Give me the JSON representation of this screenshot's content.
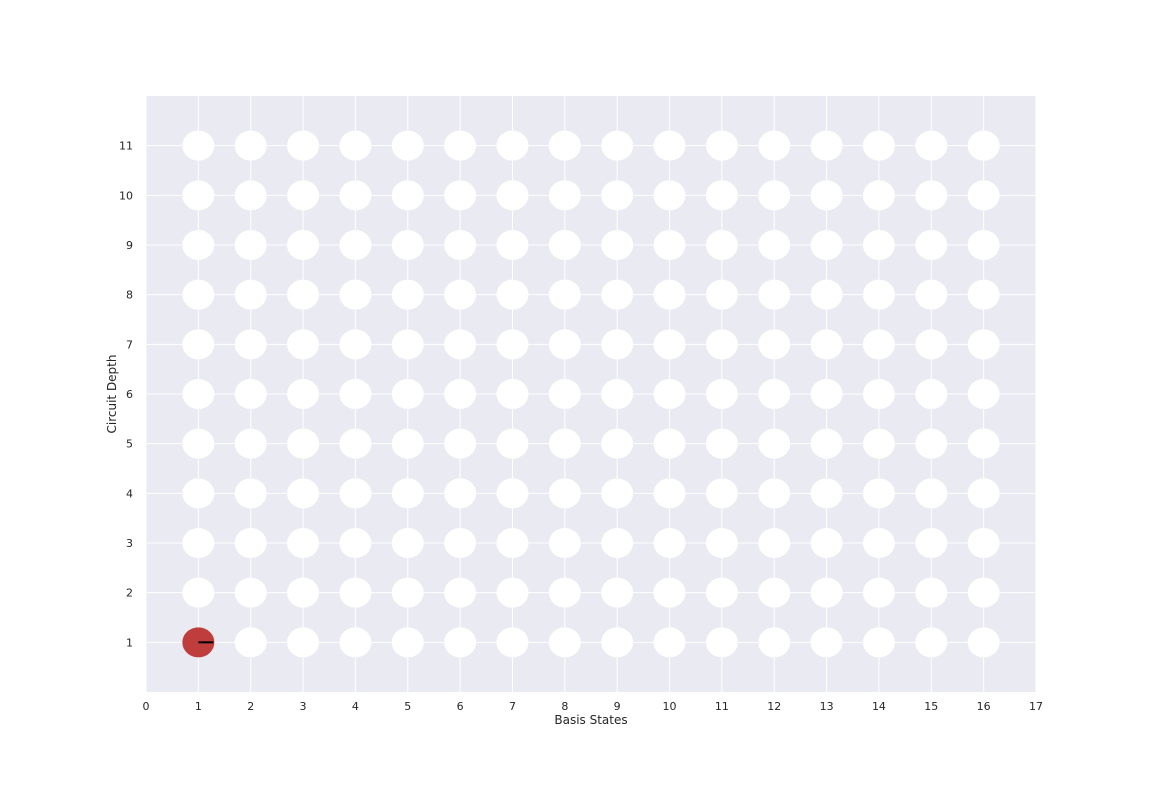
{
  "chart_data": {
    "type": "scatter",
    "xlabel": "Basis States",
    "ylabel": "Circuit Depth",
    "xlim": [
      0,
      17
    ],
    "ylim": [
      0,
      12
    ],
    "xticks": [
      "0",
      "1",
      "2",
      "3",
      "4",
      "5",
      "6",
      "7",
      "8",
      "9",
      "10",
      "11",
      "12",
      "13",
      "14",
      "15",
      "16",
      "17"
    ],
    "yticks": [
      "1",
      "2",
      "3",
      "4",
      "5",
      "6",
      "7",
      "8",
      "9",
      "10",
      "11"
    ],
    "grid": true,
    "background_color": "#eaeaf2",
    "grid_color": "#ffffff",
    "grid_x": [
      1,
      2,
      3,
      4,
      5,
      6,
      7,
      8,
      9,
      10,
      11,
      12,
      13,
      14,
      15,
      16
    ],
    "grid_y": [
      1,
      2,
      3,
      4,
      5,
      6,
      7,
      8,
      9,
      10,
      11
    ],
    "empty_marker_color": "#ffffff",
    "amplitudes": [
      {
        "x": 1,
        "y": 1,
        "magnitude": 1.0,
        "phase_deg": 0,
        "color": "#c03d3e",
        "phase_line_color": "#000000"
      }
    ]
  }
}
